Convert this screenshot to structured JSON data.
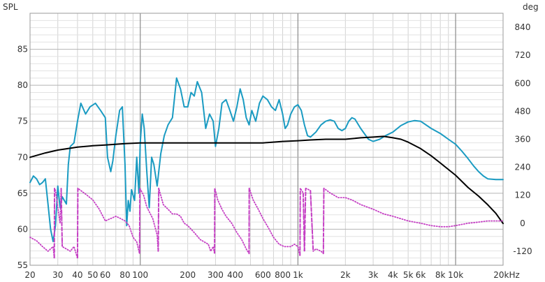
{
  "chart_data": {
    "type": "line",
    "title": "",
    "y_left_label": "SPL",
    "y_right_label": "deg",
    "x_unit_label": "Hz",
    "x_scale": "log",
    "xlim": [
      20,
      20000
    ],
    "ylim_left": [
      55,
      90
    ],
    "ylim_right": [
      -180,
      900
    ],
    "grid": true,
    "x_tick_labels": [
      {
        "v": 20,
        "t": "20"
      },
      {
        "v": 30,
        "t": "30"
      },
      {
        "v": 40,
        "t": "40"
      },
      {
        "v": 50,
        "t": "50"
      },
      {
        "v": 60,
        "t": "60"
      },
      {
        "v": 80,
        "t": "80"
      },
      {
        "v": 100,
        "t": "100"
      },
      {
        "v": 200,
        "t": "200"
      },
      {
        "v": 300,
        "t": "300"
      },
      {
        "v": 400,
        "t": "400"
      },
      {
        "v": 600,
        "t": "600"
      },
      {
        "v": 800,
        "t": "800"
      },
      {
        "v": 1000,
        "t": "1k"
      },
      {
        "v": 2000,
        "t": "2k"
      },
      {
        "v": 3000,
        "t": "3k"
      },
      {
        "v": 4000,
        "t": "4k"
      },
      {
        "v": 5000,
        "t": "5k"
      },
      {
        "v": 6000,
        "t": "6k"
      },
      {
        "v": 8000,
        "t": "8k"
      },
      {
        "v": 10000,
        "t": "10k"
      },
      {
        "v": 20000,
        "t": "20kHz"
      }
    ],
    "y_left_ticks": [
      55,
      60,
      65,
      70,
      75,
      80,
      85
    ],
    "y_right_ticks": [
      -120,
      0,
      120,
      240,
      360,
      480,
      600,
      720,
      840
    ],
    "series": [
      {
        "axis": "left",
        "color": "#1a9bc2",
        "style": "solid",
        "points": [
          [
            20,
            66.5
          ],
          [
            21,
            67.4
          ],
          [
            22,
            67.0
          ],
          [
            23,
            66.2
          ],
          [
            24,
            66.5
          ],
          [
            25,
            67.0
          ],
          [
            26,
            63.5
          ],
          [
            27,
            60.0
          ],
          [
            28,
            58.3
          ],
          [
            29,
            60.5
          ],
          [
            30,
            66.0
          ],
          [
            31,
            63.0
          ],
          [
            32,
            64.5
          ],
          [
            33,
            64.0
          ],
          [
            34,
            63.5
          ],
          [
            35,
            69.0
          ],
          [
            36,
            71.5
          ],
          [
            38,
            72.0
          ],
          [
            40,
            75.0
          ],
          [
            42,
            77.5
          ],
          [
            45,
            76.0
          ],
          [
            48,
            77.0
          ],
          [
            52,
            77.5
          ],
          [
            56,
            76.5
          ],
          [
            60,
            75.5
          ],
          [
            62,
            70.0
          ],
          [
            65,
            68.0
          ],
          [
            67,
            69.5
          ],
          [
            70,
            73.0
          ],
          [
            74,
            76.5
          ],
          [
            77,
            77.0
          ],
          [
            80,
            69.0
          ],
          [
            82,
            60.5
          ],
          [
            84,
            64.0
          ],
          [
            86,
            62.5
          ],
          [
            88,
            65.5
          ],
          [
            92,
            64.0
          ],
          [
            95,
            70.0
          ],
          [
            98,
            65.0
          ],
          [
            100,
            72.0
          ],
          [
            103,
            76.0
          ],
          [
            106,
            74.0
          ],
          [
            110,
            68.0
          ],
          [
            114,
            63.0
          ],
          [
            118,
            70.0
          ],
          [
            122,
            69.0
          ],
          [
            128,
            66.0
          ],
          [
            135,
            70.5
          ],
          [
            142,
            73.0
          ],
          [
            150,
            74.5
          ],
          [
            160,
            75.5
          ],
          [
            170,
            81.0
          ],
          [
            180,
            79.5
          ],
          [
            190,
            77.0
          ],
          [
            200,
            77.0
          ],
          [
            210,
            79.0
          ],
          [
            220,
            78.5
          ],
          [
            230,
            80.5
          ],
          [
            245,
            79.0
          ],
          [
            260,
            74.0
          ],
          [
            275,
            76.0
          ],
          [
            290,
            75.0
          ],
          [
            300,
            71.5
          ],
          [
            315,
            74.0
          ],
          [
            330,
            77.5
          ],
          [
            350,
            78.0
          ],
          [
            370,
            76.5
          ],
          [
            390,
            75.0
          ],
          [
            410,
            77.0
          ],
          [
            430,
            79.5
          ],
          [
            450,
            78.0
          ],
          [
            470,
            75.5
          ],
          [
            490,
            74.5
          ],
          [
            510,
            76.5
          ],
          [
            540,
            75.0
          ],
          [
            570,
            77.5
          ],
          [
            600,
            78.5
          ],
          [
            640,
            78.0
          ],
          [
            680,
            77.0
          ],
          [
            720,
            76.5
          ],
          [
            760,
            78.0
          ],
          [
            800,
            76.0
          ],
          [
            830,
            74.0
          ],
          [
            860,
            74.5
          ],
          [
            900,
            76.0
          ],
          [
            950,
            77.0
          ],
          [
            1000,
            77.3
          ],
          [
            1050,
            76.5
          ],
          [
            1100,
            74.5
          ],
          [
            1150,
            73.0
          ],
          [
            1200,
            72.8
          ],
          [
            1300,
            73.5
          ],
          [
            1400,
            74.5
          ],
          [
            1500,
            75.0
          ],
          [
            1600,
            75.2
          ],
          [
            1700,
            75.0
          ],
          [
            1800,
            74.0
          ],
          [
            1900,
            73.7
          ],
          [
            2000,
            74.0
          ],
          [
            2100,
            75.0
          ],
          [
            2200,
            75.5
          ],
          [
            2300,
            75.3
          ],
          [
            2500,
            74.0
          ],
          [
            2800,
            72.5
          ],
          [
            3000,
            72.2
          ],
          [
            3300,
            72.5
          ],
          [
            3600,
            73.0
          ],
          [
            4000,
            73.5
          ],
          [
            4500,
            74.4
          ],
          [
            5000,
            74.9
          ],
          [
            5500,
            75.1
          ],
          [
            6000,
            75.0
          ],
          [
            7000,
            74.0
          ],
          [
            8000,
            73.3
          ],
          [
            9000,
            72.5
          ],
          [
            10000,
            71.8
          ],
          [
            11000,
            70.8
          ],
          [
            12000,
            69.8
          ],
          [
            13000,
            68.8
          ],
          [
            14000,
            68.0
          ],
          [
            15000,
            67.4
          ],
          [
            16000,
            67.0
          ],
          [
            18000,
            66.9
          ],
          [
            20000,
            66.9
          ]
        ]
      },
      {
        "axis": "left",
        "color": "#000000",
        "style": "solid",
        "points": [
          [
            20,
            70.0
          ],
          [
            25,
            70.6
          ],
          [
            30,
            71.0
          ],
          [
            40,
            71.4
          ],
          [
            50,
            71.6
          ],
          [
            60,
            71.7
          ],
          [
            80,
            71.9
          ],
          [
            100,
            72.0
          ],
          [
            150,
            72.0
          ],
          [
            200,
            72.0
          ],
          [
            300,
            72.0
          ],
          [
            400,
            72.0
          ],
          [
            600,
            72.0
          ],
          [
            800,
            72.2
          ],
          [
            1000,
            72.3
          ],
          [
            1200,
            72.4
          ],
          [
            1500,
            72.5
          ],
          [
            2000,
            72.5
          ],
          [
            2500,
            72.7
          ],
          [
            3000,
            72.8
          ],
          [
            3500,
            72.9
          ],
          [
            4000,
            72.7
          ],
          [
            4500,
            72.5
          ],
          [
            5000,
            72.1
          ],
          [
            6000,
            71.2
          ],
          [
            7000,
            70.2
          ],
          [
            8000,
            69.2
          ],
          [
            10000,
            67.5
          ],
          [
            12000,
            65.8
          ],
          [
            14000,
            64.6
          ],
          [
            16000,
            63.4
          ],
          [
            18000,
            62.2
          ],
          [
            20000,
            60.8
          ]
        ]
      },
      {
        "axis": "right",
        "color": "#c53fc4",
        "style": "dotted",
        "points": [
          [
            20,
            -60
          ],
          [
            22,
            -75
          ],
          [
            24,
            -100
          ],
          [
            26,
            -120
          ],
          [
            28,
            -100
          ],
          [
            28.5,
            -150
          ],
          [
            28.6,
            150
          ],
          [
            29,
            140
          ],
          [
            30,
            70
          ],
          [
            31,
            0
          ],
          [
            31.5,
            150
          ],
          [
            32,
            -100
          ],
          [
            34,
            -110
          ],
          [
            36,
            -120
          ],
          [
            38,
            -100
          ],
          [
            40,
            -150
          ],
          [
            40.2,
            150
          ],
          [
            42,
            140
          ],
          [
            46,
            120
          ],
          [
            50,
            100
          ],
          [
            55,
            60
          ],
          [
            60,
            10
          ],
          [
            65,
            20
          ],
          [
            70,
            30
          ],
          [
            75,
            20
          ],
          [
            80,
            10
          ],
          [
            85,
            -10
          ],
          [
            90,
            -60
          ],
          [
            95,
            -80
          ],
          [
            99,
            -130
          ],
          [
            99.5,
            150
          ],
          [
            105,
            120
          ],
          [
            110,
            70
          ],
          [
            120,
            20
          ],
          [
            128,
            -50
          ],
          [
            130,
            -120
          ],
          [
            131,
            150
          ],
          [
            140,
            80
          ],
          [
            150,
            60
          ],
          [
            160,
            40
          ],
          [
            170,
            40
          ],
          [
            180,
            30
          ],
          [
            190,
            0
          ],
          [
            200,
            -10
          ],
          [
            220,
            -40
          ],
          [
            240,
            -70
          ],
          [
            270,
            -90
          ],
          [
            280,
            -120
          ],
          [
            290,
            -100
          ],
          [
            296,
            -130
          ],
          [
            297,
            150
          ],
          [
            310,
            100
          ],
          [
            330,
            60
          ],
          [
            350,
            30
          ],
          [
            380,
            0
          ],
          [
            410,
            -40
          ],
          [
            440,
            -70
          ],
          [
            470,
            -110
          ],
          [
            490,
            -130
          ],
          [
            491,
            150
          ],
          [
            520,
            100
          ],
          [
            560,
            60
          ],
          [
            600,
            20
          ],
          [
            650,
            -20
          ],
          [
            700,
            -60
          ],
          [
            760,
            -90
          ],
          [
            820,
            -100
          ],
          [
            900,
            -100
          ],
          [
            950,
            -90
          ],
          [
            1000,
            -100
          ],
          [
            1030,
            -140
          ],
          [
            1035,
            150
          ],
          [
            1080,
            130
          ],
          [
            1100,
            -120
          ],
          [
            1120,
            150
          ],
          [
            1200,
            140
          ],
          [
            1250,
            -120
          ],
          [
            1300,
            -110
          ],
          [
            1400,
            -120
          ],
          [
            1450,
            -130
          ],
          [
            1460,
            150
          ],
          [
            1600,
            130
          ],
          [
            1800,
            110
          ],
          [
            2000,
            110
          ],
          [
            2200,
            100
          ],
          [
            2500,
            80
          ],
          [
            3000,
            60
          ],
          [
            3500,
            40
          ],
          [
            4000,
            30
          ],
          [
            5000,
            10
          ],
          [
            6000,
            0
          ],
          [
            7000,
            -10
          ],
          [
            8000,
            -15
          ],
          [
            9000,
            -15
          ],
          [
            10000,
            -10
          ],
          [
            12000,
            0
          ],
          [
            14000,
            5
          ],
          [
            16000,
            10
          ],
          [
            18000,
            10
          ],
          [
            20000,
            10
          ]
        ]
      }
    ]
  }
}
